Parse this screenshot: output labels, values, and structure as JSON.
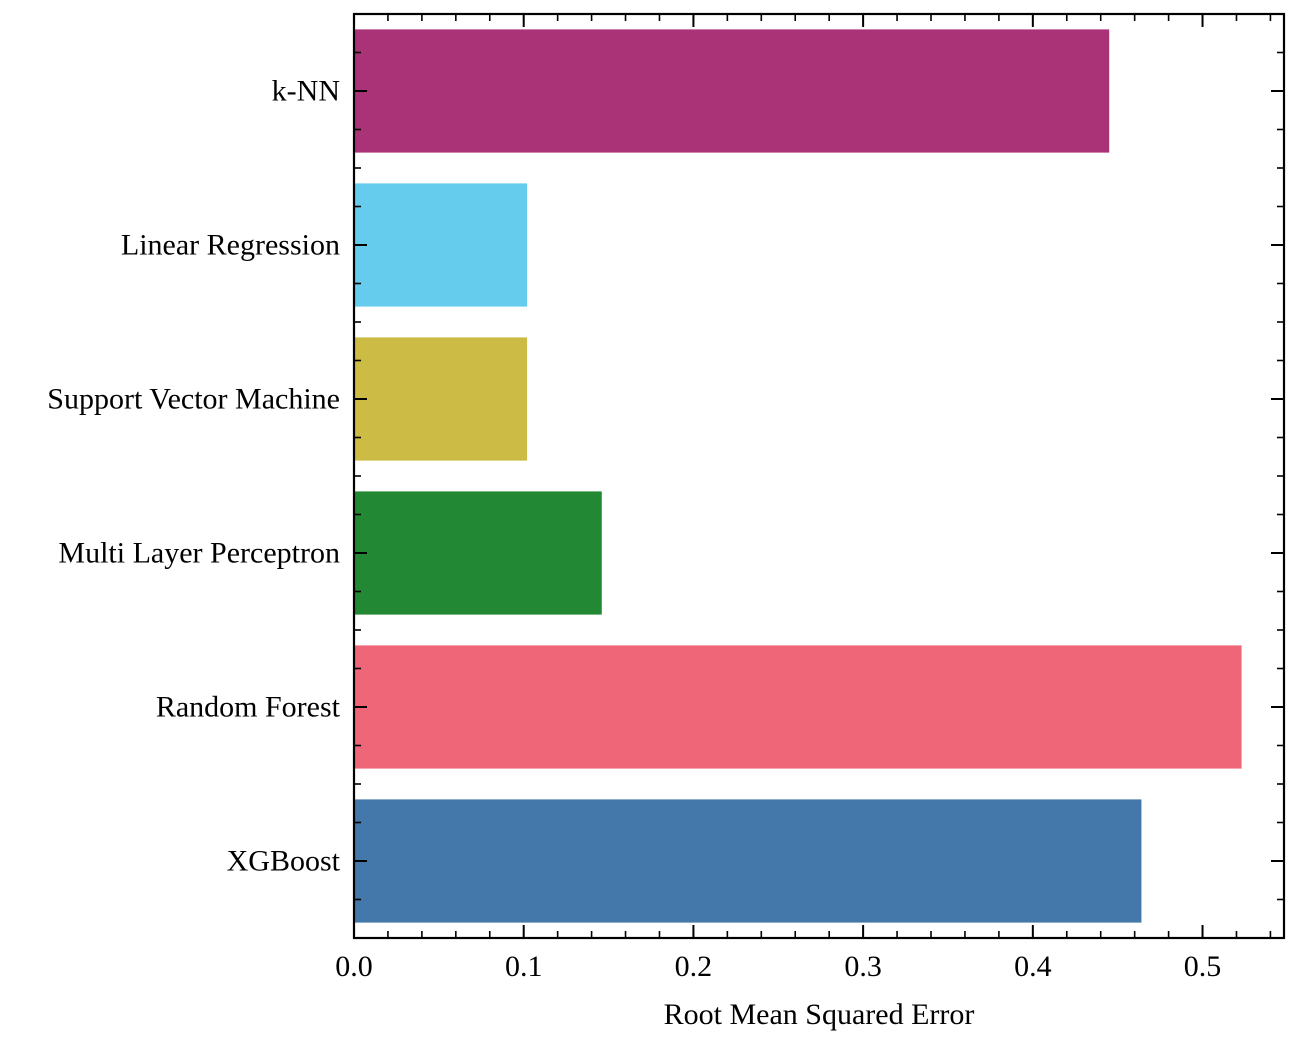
{
  "chart_data": {
    "type": "bar",
    "orientation": "horizontal",
    "categories": [
      "k-NN",
      "Linear Regression",
      "Support Vector Machine",
      "Multi Layer Perceptron",
      "Random Forest",
      "XGBoost"
    ],
    "values": [
      0.445,
      0.102,
      0.102,
      0.146,
      0.523,
      0.464
    ],
    "colors": [
      "#AA3377",
      "#66CCEE",
      "#CCBB44",
      "#228833",
      "#EE6677",
      "#4477AA"
    ],
    "title": "",
    "xlabel": "Root Mean Squared Error",
    "ylabel": "",
    "xlim": [
      0,
      0.548
    ],
    "xticks": [
      0.0,
      0.1,
      0.2,
      0.3,
      0.4,
      0.5
    ],
    "xtick_labels": [
      "0.0",
      "0.1",
      "0.2",
      "0.3",
      "0.4",
      "0.5"
    ],
    "x_minor_step": 0.02,
    "grid": false,
    "legend": "none",
    "tick_direction": "in",
    "frame": "all four sides"
  }
}
